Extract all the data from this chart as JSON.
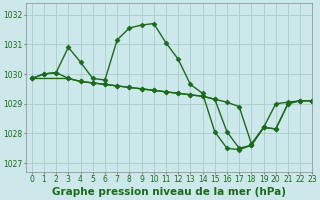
{
  "title": "Graphe pression niveau de la mer (hPa)",
  "bg_color": "#cce8ea",
  "grid_color": "#aacccc",
  "line_color": "#1a6b1a",
  "xlim": [
    -0.5,
    23
  ],
  "ylim": [
    1026.7,
    1032.4
  ],
  "yticks": [
    1027,
    1028,
    1029,
    1030,
    1031,
    1032
  ],
  "xticks": [
    0,
    1,
    2,
    3,
    4,
    5,
    6,
    7,
    8,
    9,
    10,
    11,
    12,
    13,
    14,
    15,
    16,
    17,
    18,
    19,
    20,
    21,
    22,
    23
  ],
  "series": [
    {
      "x": [
        0,
        1,
        2,
        3,
        4,
        5,
        6,
        7,
        8,
        9,
        10,
        11,
        12,
        13,
        14,
        15,
        16,
        17,
        18,
        19,
        20,
        21,
        22,
        23
      ],
      "y": [
        1029.85,
        1030.0,
        1030.05,
        1030.9,
        1030.4,
        1029.85,
        1029.8,
        1031.15,
        1031.55,
        1031.65,
        1031.7,
        1031.05,
        1030.5,
        1029.65,
        1029.35,
        1028.05,
        1027.5,
        1027.45,
        1027.6,
        1028.2,
        1028.15,
        1029.0,
        1029.1,
        1029.1
      ]
    },
    {
      "x": [
        0,
        1,
        2,
        3,
        4,
        5,
        6,
        7,
        8,
        9,
        10,
        11,
        12,
        13,
        14,
        15,
        16,
        17,
        18,
        19,
        20,
        21,
        22,
        23
      ],
      "y": [
        1029.85,
        1030.0,
        1030.05,
        1029.85,
        1029.75,
        1029.7,
        1029.65,
        1029.6,
        1029.55,
        1029.5,
        1029.45,
        1029.4,
        1029.35,
        1029.3,
        1029.25,
        1029.15,
        1029.05,
        1028.9,
        1027.65,
        1028.2,
        1029.0,
        1029.05,
        1029.1,
        1029.1
      ]
    },
    {
      "x": [
        0,
        3,
        4,
        5,
        6,
        7,
        8,
        9,
        10,
        11,
        12,
        13,
        14,
        15,
        16,
        17,
        18,
        19,
        20,
        21,
        22,
        23
      ],
      "y": [
        1029.85,
        1029.85,
        1029.75,
        1029.7,
        1029.65,
        1029.6,
        1029.55,
        1029.5,
        1029.45,
        1029.4,
        1029.35,
        1029.3,
        1029.25,
        1029.15,
        1028.05,
        1027.5,
        1027.6,
        1028.2,
        1028.15,
        1029.0,
        1029.1,
        1029.1
      ]
    }
  ],
  "marker": "D",
  "markersize": 2.5,
  "linewidth": 1.0,
  "tick_fontsize": 5.5,
  "title_fontsize": 7.5
}
